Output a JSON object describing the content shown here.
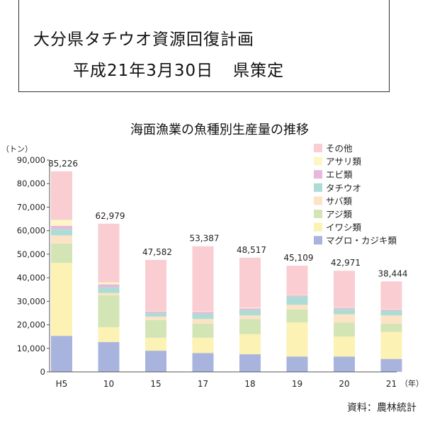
{
  "header": {
    "line1": "大分県タチウオ資源回復計画",
    "line2_a": "平成21年3月30日",
    "line2_b": "県策定"
  },
  "chart_data": {
    "type": "bar",
    "stacked": true,
    "title": "海面漁業の魚種別生産量の推移",
    "ylabel": "（トン）",
    "xunit": "（年）",
    "source": "資料：農林統計",
    "ylim": [
      0,
      90000
    ],
    "yticks": [
      0,
      10000,
      20000,
      30000,
      40000,
      50000,
      60000,
      70000,
      80000,
      90000
    ],
    "ytick_labels": [
      "0",
      "10,000",
      "20,000",
      "30,000",
      "40,000",
      "50,000",
      "60,000",
      "70,000",
      "80,000",
      "90,000"
    ],
    "categories": [
      "H5",
      "10",
      "15",
      "17",
      "18",
      "19",
      "20",
      "21"
    ],
    "totals": [
      85226,
      62979,
      47582,
      53387,
      48517,
      45109,
      42971,
      38444
    ],
    "total_labels": [
      "85,226",
      "62,979",
      "47,582",
      "53,387",
      "48,517",
      "45,109",
      "42,971",
      "38,444"
    ],
    "legend_position": "top-right",
    "series": [
      {
        "name": "マグロ・カジキ類",
        "color": "#a9b4de",
        "values": [
          15300,
          12700,
          9000,
          8000,
          7500,
          6500,
          6500,
          5500
        ]
      },
      {
        "name": "イワシ類",
        "color": "#fbf2b3",
        "values": [
          31000,
          6300,
          5500,
          6500,
          8500,
          14500,
          8500,
          11500
        ]
      },
      {
        "name": "アジ類",
        "color": "#d3e5b5",
        "values": [
          8200,
          13500,
          7500,
          6000,
          6500,
          5500,
          6000,
          3500
        ]
      },
      {
        "name": "サバ類",
        "color": "#fde3c5",
        "values": [
          3500,
          1000,
          1500,
          2000,
          1500,
          2000,
          3500,
          3500
        ]
      },
      {
        "name": "タチウオ",
        "color": "#acdcd3",
        "values": [
          2700,
          2500,
          1500,
          2200,
          2300,
          3500,
          2200,
          2000
        ]
      },
      {
        "name": "エビ類",
        "color": "#e7b8db",
        "values": [
          1400,
          1200,
          700,
          800,
          700,
          600,
          600,
          500
        ]
      },
      {
        "name": "アサリ類",
        "color": "#fdf6c6",
        "values": [
          2500,
          800,
          200,
          200,
          300,
          200,
          200,
          200
        ]
      },
      {
        "name": "その他",
        "color": "#f9cdd1",
        "values": [
          20626,
          24979,
          21682,
          27687,
          21217,
          12309,
          15471,
          11744
        ]
      }
    ]
  }
}
